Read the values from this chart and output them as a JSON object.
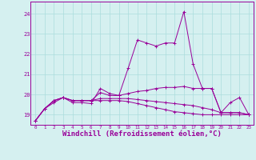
{
  "background_color": "#d5f0f0",
  "grid_color": "#aadddd",
  "line_color": "#990099",
  "xlabel": "Windchill (Refroidissement éolien,°C)",
  "xlabel_fontsize": 6.5,
  "yticks": [
    19,
    20,
    21,
    22,
    23,
    24
  ],
  "xticks": [
    0,
    1,
    2,
    3,
    4,
    5,
    6,
    7,
    8,
    9,
    10,
    11,
    12,
    13,
    14,
    15,
    16,
    17,
    18,
    19,
    20,
    21,
    22,
    23
  ],
  "ylim": [
    18.5,
    24.6
  ],
  "xlim": [
    -0.5,
    23.5
  ],
  "series": [
    [
      18.7,
      19.3,
      19.6,
      19.85,
      19.6,
      19.6,
      19.55,
      20.3,
      20.05,
      19.95,
      21.3,
      22.7,
      22.55,
      22.4,
      22.55,
      22.55,
      24.1,
      21.5,
      20.3,
      20.3,
      19.1,
      19.6,
      19.85,
      19.0
    ],
    [
      18.7,
      19.3,
      19.7,
      19.85,
      19.7,
      19.7,
      19.7,
      20.1,
      19.95,
      19.95,
      20.05,
      20.15,
      20.2,
      20.3,
      20.35,
      20.35,
      20.4,
      20.3,
      20.3,
      20.3,
      19.1,
      19.1,
      19.1,
      19.0
    ],
    [
      18.7,
      19.3,
      19.7,
      19.85,
      19.7,
      19.7,
      19.7,
      19.8,
      19.8,
      19.8,
      19.8,
      19.75,
      19.7,
      19.65,
      19.6,
      19.55,
      19.5,
      19.45,
      19.35,
      19.25,
      19.1,
      19.1,
      19.1,
      19.0
    ],
    [
      18.7,
      19.3,
      19.7,
      19.85,
      19.7,
      19.7,
      19.7,
      19.7,
      19.7,
      19.7,
      19.65,
      19.55,
      19.45,
      19.35,
      19.25,
      19.15,
      19.1,
      19.05,
      19.0,
      19.0,
      19.0,
      19.0,
      19.0,
      19.0
    ]
  ]
}
